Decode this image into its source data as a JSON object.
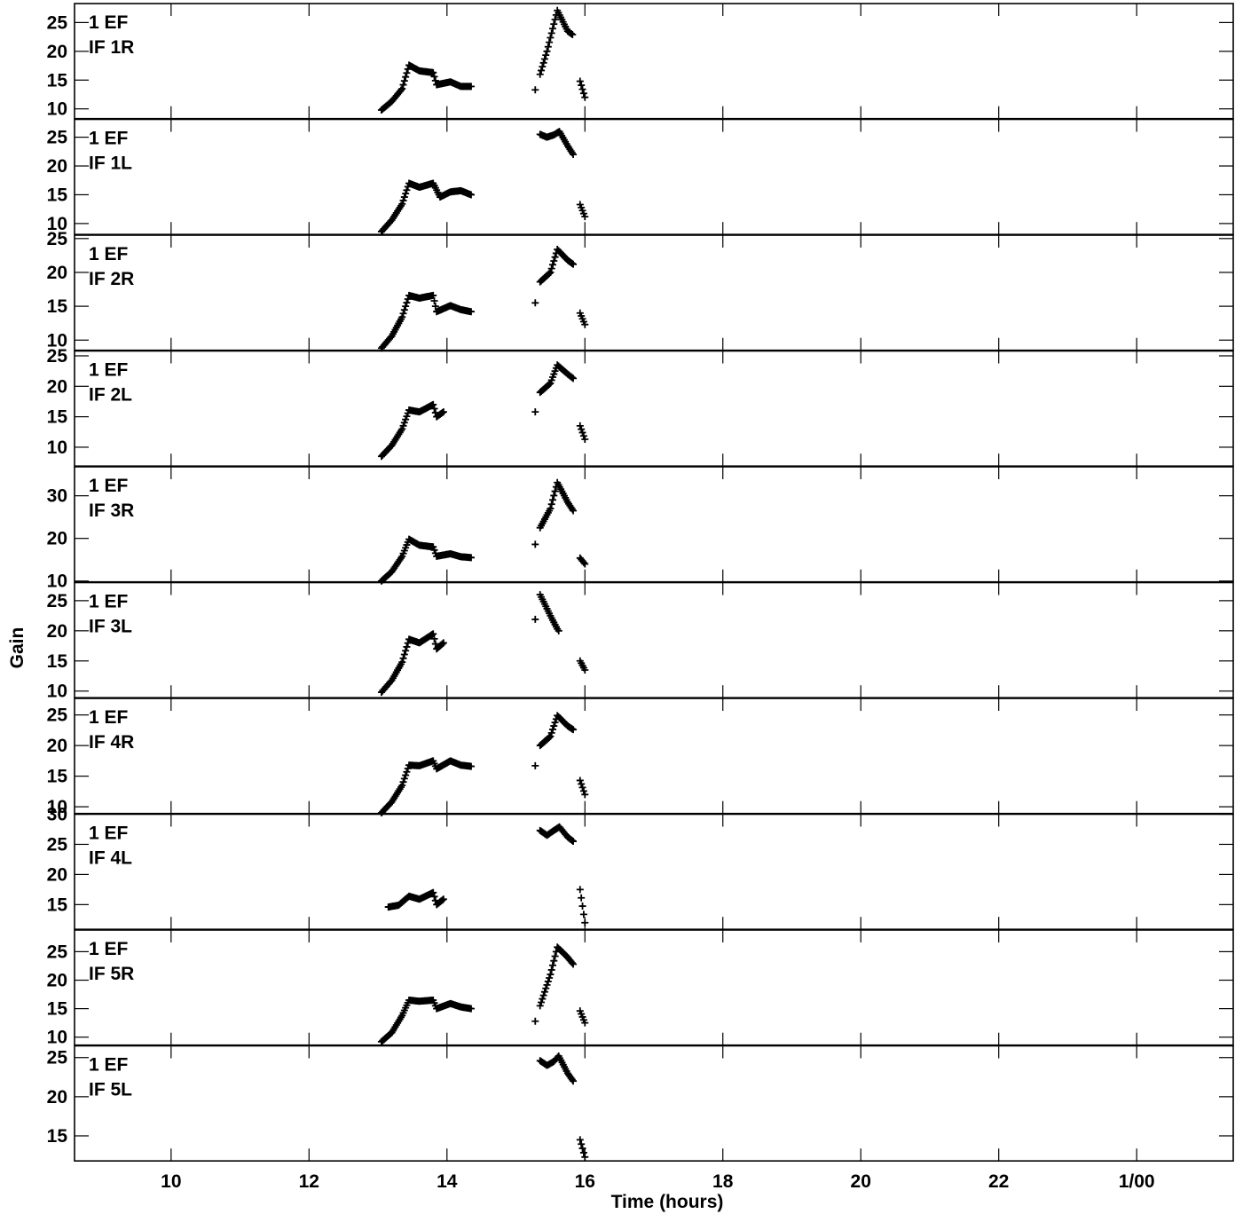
{
  "chart_data": {
    "type": "scatter",
    "xlabel": "Time (hours)",
    "ylabel": "Gain",
    "xlim": [
      8.6,
      25.4
    ],
    "x_ticks": [
      {
        "value": 10,
        "label": "10"
      },
      {
        "value": 12,
        "label": "12"
      },
      {
        "value": 14,
        "label": "14"
      },
      {
        "value": 16,
        "label": "16"
      },
      {
        "value": 18,
        "label": "18"
      },
      {
        "value": 20,
        "label": "20"
      },
      {
        "value": 22,
        "label": "22"
      },
      {
        "value": 24,
        "label": "1/00"
      }
    ],
    "marker": "plus",
    "panels": [
      {
        "line1": "1 EF",
        "line2": "IF 1R",
        "ylim": [
          8.3,
          28.3
        ],
        "yticks": [
          10,
          15,
          20,
          25
        ],
        "knots": [
          [
            13.05,
            9.8
          ],
          [
            13.2,
            11.3
          ],
          [
            13.35,
            13.5
          ],
          [
            13.45,
            17.6
          ],
          [
            13.6,
            16.6
          ],
          [
            13.8,
            16.3
          ],
          [
            13.85,
            14.2
          ],
          [
            14.05,
            14.7
          ],
          [
            14.2,
            13.9
          ],
          [
            14.35,
            13.9
          ],
          null,
          [
            15.28,
            13.3
          ],
          null,
          [
            15.35,
            16.0
          ],
          [
            15.45,
            20.0
          ],
          [
            15.6,
            27.1
          ],
          [
            15.75,
            23.5
          ],
          [
            15.82,
            22.9
          ],
          null,
          [
            15.93,
            14.8
          ],
          [
            16.0,
            12.0
          ]
        ]
      },
      {
        "line1": "1 EF",
        "line2": "IF 1L",
        "ylim": [
          8.1,
          28.1
        ],
        "yticks": [
          10,
          15,
          20,
          25
        ],
        "knots": [
          [
            13.05,
            8.6
          ],
          [
            13.2,
            10.6
          ],
          [
            13.35,
            13.4
          ],
          [
            13.45,
            17.0
          ],
          [
            13.6,
            16.3
          ],
          [
            13.8,
            17.0
          ],
          [
            13.9,
            14.6
          ],
          [
            14.05,
            15.5
          ],
          [
            14.2,
            15.7
          ],
          [
            14.35,
            15.0
          ],
          null,
          [
            15.35,
            25.5
          ],
          [
            15.45,
            25.0
          ],
          [
            15.55,
            25.4
          ],
          [
            15.63,
            26.0
          ],
          [
            15.75,
            23.5
          ],
          [
            15.83,
            22.0
          ],
          null,
          [
            15.93,
            13.3
          ],
          [
            16.0,
            11.2
          ]
        ]
      },
      {
        "line1": "1 EF",
        "line2": "IF 2R",
        "ylim": [
          8.5,
          25.5
        ],
        "yticks": [
          10,
          15,
          20,
          25
        ],
        "knots": [
          [
            13.05,
            8.8
          ],
          [
            13.2,
            10.6
          ],
          [
            13.35,
            13.4
          ],
          [
            13.45,
            16.6
          ],
          [
            13.6,
            16.2
          ],
          [
            13.8,
            16.6
          ],
          [
            13.85,
            14.2
          ],
          [
            14.05,
            15.1
          ],
          [
            14.2,
            14.5
          ],
          [
            14.35,
            14.2
          ],
          null,
          [
            15.28,
            15.5
          ],
          null,
          [
            15.35,
            18.6
          ],
          [
            15.5,
            20.0
          ],
          [
            15.6,
            23.4
          ],
          [
            15.75,
            21.8
          ],
          [
            15.83,
            21.2
          ],
          null,
          [
            15.93,
            14.0
          ],
          [
            16.0,
            12.3
          ]
        ]
      },
      {
        "line1": "1 EF",
        "line2": "IF 2L",
        "ylim": [
          6.9,
          25.8
        ],
        "yticks": [
          10,
          15,
          20,
          25
        ],
        "knots": [
          [
            13.05,
            8.5
          ],
          [
            13.2,
            10.3
          ],
          [
            13.35,
            13.0
          ],
          [
            13.45,
            16.1
          ],
          [
            13.6,
            15.8
          ],
          [
            13.8,
            17.0
          ],
          [
            13.85,
            15.0
          ],
          [
            13.95,
            15.8
          ],
          null,
          [
            15.28,
            15.8
          ],
          null,
          [
            15.35,
            19.0
          ],
          [
            15.5,
            20.5
          ],
          [
            15.6,
            23.5
          ],
          [
            15.75,
            22.0
          ],
          [
            15.83,
            21.3
          ],
          null,
          [
            15.93,
            13.5
          ],
          [
            16.0,
            11.3
          ]
        ]
      },
      {
        "line1": "1 EF",
        "line2": "IF 3R",
        "ylim": [
          9.8,
          36.8
        ],
        "yticks": [
          10,
          20,
          30
        ],
        "knots": [
          [
            13.05,
            10.0
          ],
          [
            13.2,
            12.2
          ],
          [
            13.35,
            15.8
          ],
          [
            13.45,
            19.8
          ],
          [
            13.6,
            18.4
          ],
          [
            13.8,
            18.0
          ],
          [
            13.85,
            15.8
          ],
          [
            14.05,
            16.4
          ],
          [
            14.2,
            15.7
          ],
          [
            14.35,
            15.5
          ],
          null,
          [
            15.28,
            18.6
          ],
          null,
          [
            15.35,
            22.5
          ],
          [
            15.5,
            27.0
          ],
          [
            15.6,
            33.1
          ],
          [
            15.75,
            28.5
          ],
          [
            15.83,
            26.5
          ],
          null,
          [
            15.93,
            15.4
          ],
          [
            16.0,
            14.0
          ]
        ]
      },
      {
        "line1": "1 EF",
        "line2": "IF 3L",
        "ylim": [
          8.9,
          28.0
        ],
        "yticks": [
          10,
          15,
          20,
          25
        ],
        "knots": [
          [
            13.05,
            9.8
          ],
          [
            13.2,
            11.8
          ],
          [
            13.35,
            14.8
          ],
          [
            13.45,
            18.6
          ],
          [
            13.6,
            18.0
          ],
          [
            13.8,
            19.5
          ],
          [
            13.85,
            17.0
          ],
          [
            13.95,
            18.0
          ],
          null,
          [
            15.28,
            21.9
          ],
          null,
          [
            15.35,
            26.0
          ],
          [
            15.5,
            22.5
          ],
          [
            15.6,
            20.3
          ],
          [
            15.62,
            20.0
          ],
          null,
          [
            15.93,
            15.0
          ],
          [
            16.0,
            13.5
          ]
        ]
      },
      {
        "line1": "1 EF",
        "line2": "IF 4R",
        "ylim": [
          8.9,
          27.7
        ],
        "yticks": [
          10,
          15,
          20,
          25
        ],
        "knots": [
          [
            13.05,
            9.0
          ],
          [
            13.2,
            10.8
          ],
          [
            13.35,
            13.5
          ],
          [
            13.45,
            16.8
          ],
          [
            13.6,
            16.7
          ],
          [
            13.8,
            17.5
          ],
          [
            13.85,
            16.2
          ],
          [
            14.05,
            17.5
          ],
          [
            14.2,
            16.8
          ],
          [
            14.35,
            16.6
          ],
          null,
          [
            15.28,
            16.7
          ],
          null,
          [
            15.35,
            20.0
          ],
          [
            15.5,
            21.5
          ],
          [
            15.6,
            24.9
          ],
          [
            15.75,
            23.2
          ],
          [
            15.83,
            22.6
          ],
          null,
          [
            15.93,
            14.3
          ],
          [
            16.0,
            12.0
          ]
        ]
      },
      {
        "line1": "1 EF",
        "line2": "IF 4L",
        "ylim": [
          10.9,
          30.0
        ],
        "yticks": [
          15,
          20,
          25,
          30
        ],
        "knots": [
          [
            13.15,
            14.6
          ],
          [
            13.3,
            14.9
          ],
          [
            13.45,
            16.4
          ],
          [
            13.6,
            15.9
          ],
          [
            13.8,
            17.0
          ],
          [
            13.85,
            15.0
          ],
          [
            13.95,
            15.9
          ],
          null,
          [
            15.35,
            27.3
          ],
          [
            15.45,
            26.5
          ],
          [
            15.55,
            27.3
          ],
          [
            15.63,
            27.9
          ],
          [
            15.75,
            26.2
          ],
          [
            15.83,
            25.5
          ],
          null,
          [
            15.93,
            17.5
          ],
          [
            16.0,
            12.0
          ]
        ]
      },
      {
        "line1": "1 EF",
        "line2": "IF 5R",
        "ylim": [
          8.6,
          28.8
        ],
        "yticks": [
          10,
          15,
          20,
          25
        ],
        "knots": [
          [
            13.05,
            9.2
          ],
          [
            13.2,
            10.8
          ],
          [
            13.35,
            13.8
          ],
          [
            13.45,
            16.5
          ],
          [
            13.6,
            16.3
          ],
          [
            13.8,
            16.5
          ],
          [
            13.85,
            15.0
          ],
          [
            14.05,
            15.9
          ],
          [
            14.2,
            15.3
          ],
          [
            14.35,
            15.0
          ],
          null,
          [
            15.28,
            12.8
          ],
          null,
          [
            15.35,
            15.5
          ],
          [
            15.5,
            21.0
          ],
          [
            15.6,
            25.8
          ],
          [
            15.75,
            24.0
          ],
          [
            15.83,
            22.8
          ],
          null,
          [
            15.93,
            14.6
          ],
          [
            16.0,
            12.5
          ]
        ]
      },
      {
        "line1": "1 EF",
        "line2": "IF 5L",
        "ylim": [
          11.8,
          26.5
        ],
        "yticks": [
          15,
          20,
          25
        ],
        "knots": [
          [
            15.35,
            24.6
          ],
          [
            15.45,
            24.0
          ],
          [
            15.55,
            24.5
          ],
          [
            15.62,
            25.2
          ],
          [
            15.75,
            23.0
          ],
          [
            15.83,
            22.0
          ],
          null,
          [
            15.93,
            14.5
          ],
          [
            16.0,
            12.3
          ]
        ]
      }
    ]
  }
}
